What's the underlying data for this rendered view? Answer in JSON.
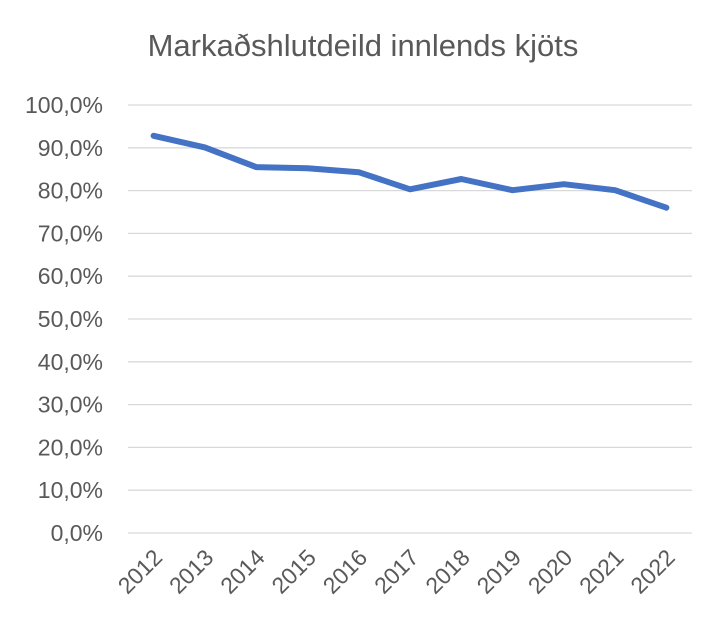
{
  "chart_data": {
    "type": "line",
    "title": "Markaðshlutdeild innlends kjöts",
    "xlabel": "",
    "ylabel": "",
    "categories": [
      "2012",
      "2013",
      "2014",
      "2015",
      "2016",
      "2017",
      "2018",
      "2019",
      "2020",
      "2021",
      "2022"
    ],
    "series": [
      {
        "values": [
          92.8,
          90.1,
          85.5,
          85.2,
          84.3,
          80.3,
          82.7,
          80.1,
          81.5,
          80.1,
          76.0
        ]
      }
    ],
    "ylim": [
      0,
      100
    ],
    "y_ticks": [
      "0,0%",
      "10,0%",
      "20,0%",
      "30,0%",
      "40,0%",
      "50,0%",
      "60,0%",
      "70,0%",
      "80,0%",
      "90,0%",
      "100,0%"
    ],
    "grid": true,
    "legend": "none",
    "colors": {
      "line": "#4472c4",
      "grid": "#d9d9d9",
      "text": "#595959"
    }
  }
}
